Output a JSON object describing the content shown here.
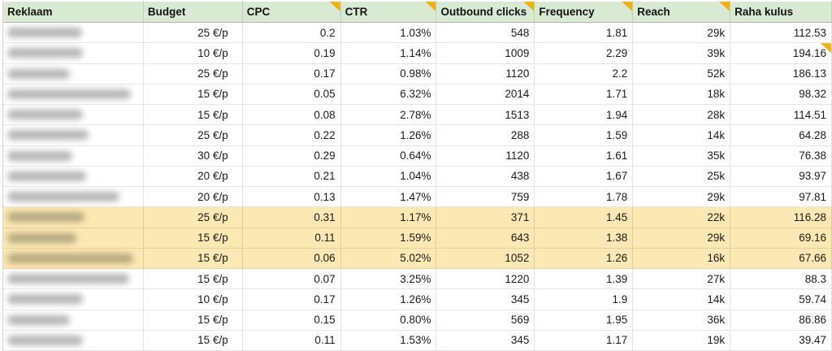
{
  "colors": {
    "header_bg": "#d9ead3",
    "highlight_bg": "#fce8b2",
    "note_marker": "#f2b10e",
    "gridline": "#e0e0e0",
    "header_border": "#b2b2b2",
    "text": "#1b1b1b"
  },
  "table": {
    "columns": [
      {
        "label": "Reklaam",
        "note": false
      },
      {
        "label": "Budget",
        "note": false
      },
      {
        "label": "CPC",
        "note": true
      },
      {
        "label": "CTR",
        "note": true
      },
      {
        "label": "Outbound clicks",
        "note": true
      },
      {
        "label": "Frequency",
        "note": true
      },
      {
        "label": "Reach",
        "note": true
      },
      {
        "label": "Raha kulus",
        "note": false
      }
    ],
    "rows": [
      {
        "name_redacted": true,
        "blur_width": 92,
        "highlight": false,
        "note_on_value": null,
        "values": [
          "25 €/p",
          "0.2",
          "1.03%",
          "548",
          "1.81",
          "29k",
          "112.53"
        ]
      },
      {
        "name_redacted": true,
        "blur_width": 93,
        "highlight": false,
        "note_on_value": 6,
        "values": [
          "10 €/p",
          "0.19",
          "1.14%",
          "1009",
          "2.29",
          "39k",
          "194.16"
        ]
      },
      {
        "name_redacted": true,
        "blur_width": 77,
        "highlight": false,
        "note_on_value": null,
        "values": [
          "25 €/p",
          "0.17",
          "0.98%",
          "1120",
          "2.2",
          "52k",
          "186.13"
        ]
      },
      {
        "name_redacted": true,
        "blur_width": 152,
        "highlight": false,
        "note_on_value": null,
        "values": [
          "15 €/p",
          "0.05",
          "6.32%",
          "2014",
          "1.71",
          "18k",
          "98.32"
        ]
      },
      {
        "name_redacted": true,
        "blur_width": 93,
        "highlight": false,
        "note_on_value": null,
        "values": [
          "15 €/p",
          "0.08",
          "2.78%",
          "1513",
          "1.94",
          "28k",
          "114.51"
        ]
      },
      {
        "name_redacted": true,
        "blur_width": 100,
        "highlight": false,
        "note_on_value": null,
        "values": [
          "25 €/p",
          "0.22",
          "1.26%",
          "288",
          "1.59",
          "14k",
          "64.28"
        ]
      },
      {
        "name_redacted": true,
        "blur_width": 80,
        "highlight": false,
        "note_on_value": null,
        "values": [
          "30 €/p",
          "0.29",
          "0.64%",
          "1120",
          "1.61",
          "35k",
          "76.38"
        ]
      },
      {
        "name_redacted": true,
        "blur_width": 97,
        "highlight": false,
        "note_on_value": null,
        "values": [
          "20 €/p",
          "0.21",
          "1.04%",
          "438",
          "1.67",
          "25k",
          "93.97"
        ]
      },
      {
        "name_redacted": true,
        "blur_width": 138,
        "highlight": false,
        "note_on_value": null,
        "values": [
          "20 €/p",
          "0.13",
          "1.47%",
          "759",
          "1.78",
          "29k",
          "97.81"
        ]
      },
      {
        "name_redacted": true,
        "blur_width": 95,
        "highlight": true,
        "note_on_value": null,
        "values": [
          "25 €/p",
          "0.31",
          "1.17%",
          "371",
          "1.45",
          "22k",
          "116.28"
        ]
      },
      {
        "name_redacted": true,
        "blur_width": 85,
        "highlight": true,
        "note_on_value": null,
        "values": [
          "15 €/p",
          "0.11",
          "1.59%",
          "643",
          "1.38",
          "29k",
          "69.16"
        ]
      },
      {
        "name_redacted": true,
        "blur_width": 155,
        "highlight": true,
        "note_on_value": null,
        "values": [
          "15 €/p",
          "0.06",
          "5.02%",
          "1052",
          "1.26",
          "16k",
          "67.66"
        ]
      },
      {
        "name_redacted": true,
        "blur_width": 150,
        "highlight": false,
        "note_on_value": null,
        "values": [
          "15 €/p",
          "0.07",
          "3.25%",
          "1220",
          "1.39",
          "27k",
          "88.3"
        ]
      },
      {
        "name_redacted": true,
        "blur_width": 93,
        "highlight": false,
        "note_on_value": null,
        "values": [
          "10 €/p",
          "0.17",
          "1.26%",
          "345",
          "1.9",
          "14k",
          "59.74"
        ]
      },
      {
        "name_redacted": true,
        "blur_width": 77,
        "highlight": false,
        "note_on_value": null,
        "values": [
          "15 €/p",
          "0.15",
          "0.80%",
          "569",
          "1.95",
          "36k",
          "86.86"
        ]
      },
      {
        "name_redacted": true,
        "blur_width": 93,
        "highlight": false,
        "note_on_value": null,
        "values": [
          "15 €/p",
          "0.11",
          "1.53%",
          "345",
          "1.17",
          "19k",
          "39.47"
        ]
      }
    ]
  }
}
